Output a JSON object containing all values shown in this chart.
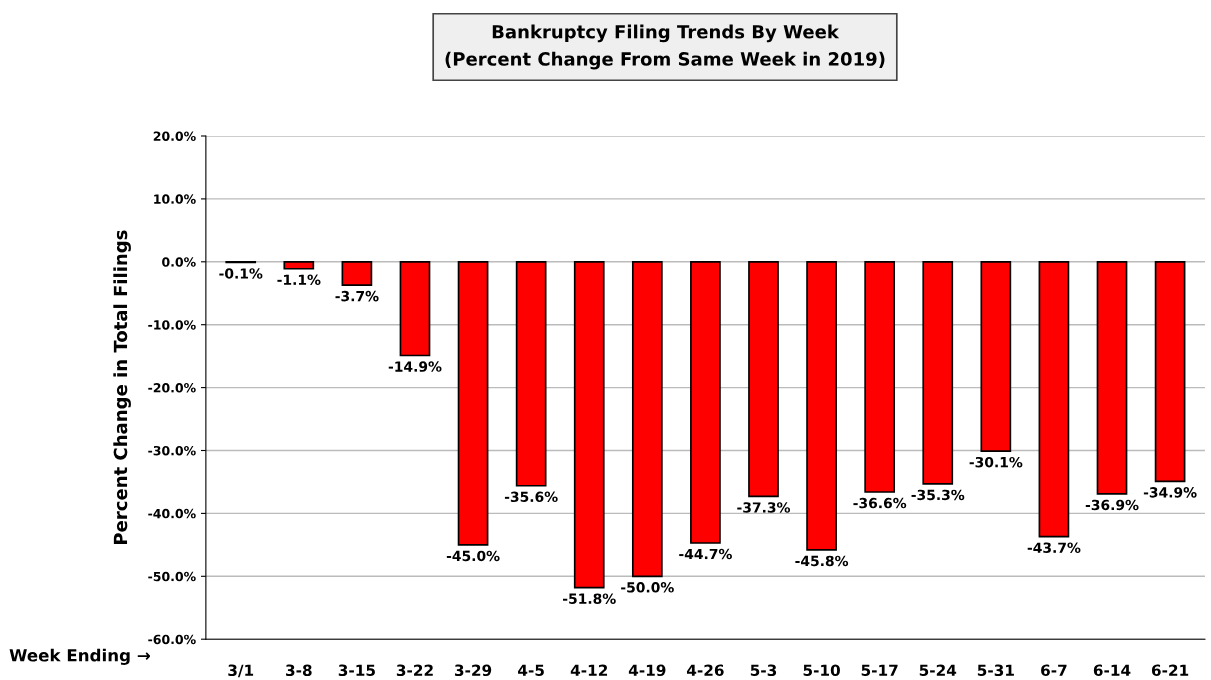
{
  "chart_data": {
    "type": "bar",
    "title": "Bankruptcy Filing Trends By Week\n(Percent Change From Same Week in 2019)",
    "xlabel": "Week Ending →",
    "ylabel": "Percent Change in Total Filings",
    "categories": [
      "3/1",
      "3-8",
      "3-15",
      "3-22",
      "3-29",
      "4-5",
      "4-12",
      "4-19",
      "4-26",
      "5-3",
      "5-10",
      "5-17",
      "5-24",
      "5-31",
      "6-7",
      "6-14",
      "6-21"
    ],
    "values": [
      -0.1,
      -1.1,
      -3.7,
      -14.9,
      -45.0,
      -35.6,
      -51.8,
      -50.0,
      -44.7,
      -37.3,
      -45.8,
      -36.6,
      -35.3,
      -30.1,
      -43.7,
      -36.9,
      -34.9
    ],
    "value_labels": [
      "-0.1%",
      "-1.1%",
      "-3.7%",
      "-14.9%",
      "-45.0%",
      "-35.6%",
      "-51.8%",
      "-50.0%",
      "-44.7%",
      "-37.3%",
      "-45.8%",
      "-36.6%",
      "-35.3%",
      "-30.1%",
      "-43.7%",
      "-36.9%",
      "-34.9%"
    ],
    "color": "#ff0000",
    "ylim": [
      -60,
      20
    ],
    "yticks": [
      {
        "value": -60,
        "label": "-60.0%"
      },
      {
        "value": -50,
        "label": "-50.0%"
      },
      {
        "value": -40,
        "label": "-40.0%"
      },
      {
        "value": -30,
        "label": "-30.0%"
      },
      {
        "value": -20,
        "label": "-20.0%"
      },
      {
        "value": -10,
        "label": "-10.0%"
      },
      {
        "value": 0,
        "label": "0.0%"
      },
      {
        "value": 10,
        "label": "10.0%"
      },
      {
        "value": 20,
        "label": "20.0%"
      }
    ],
    "grid": "y"
  }
}
